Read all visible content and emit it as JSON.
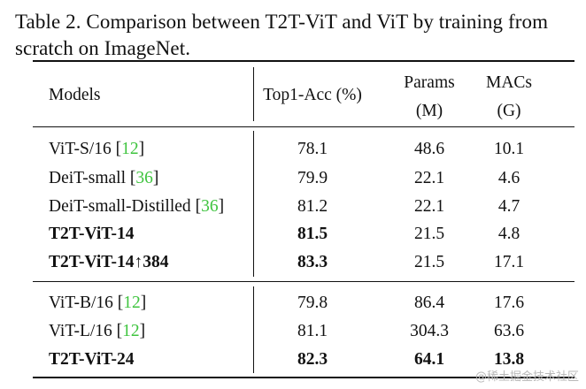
{
  "caption": {
    "line1": "Table 2. Comparison between T2T-ViT and ViT by training from",
    "line2": "scratch on ImageNet."
  },
  "header": {
    "models": "Models",
    "acc": "Top1-Acc (%)",
    "params": "Params",
    "params_unit": "(M)",
    "macs": "MACs",
    "macs_unit": "(G)"
  },
  "rows": [
    {
      "model": "ViT-S/16",
      "cite": "12",
      "acc": "78.1",
      "params": "48.6",
      "macs": "10.1"
    },
    {
      "model": "DeiT-small",
      "cite": "36",
      "acc": "79.9",
      "params": "22.1",
      "macs": "4.6"
    },
    {
      "model": "DeiT-small-Distilled",
      "cite": "36",
      "acc": "81.2",
      "params": "22.1",
      "macs": "4.7"
    },
    {
      "model": "T2T-ViT-14",
      "cite": "",
      "acc": "81.5",
      "params": "21.5",
      "macs": "4.8"
    },
    {
      "model": "T2T-ViT-14↑384",
      "cite": "",
      "acc": "83.3",
      "params": "21.5",
      "macs": "17.1"
    },
    {
      "model": "ViT-B/16",
      "cite": "12",
      "acc": "79.8",
      "params": "86.4",
      "macs": "17.6"
    },
    {
      "model": "ViT-L/16",
      "cite": "12",
      "acc": "81.1",
      "params": "304.3",
      "macs": "63.6"
    },
    {
      "model": "T2T-ViT-24",
      "cite": "",
      "acc": "82.3",
      "params": "64.1",
      "macs": "13.8"
    }
  ],
  "watermark": "@稀土掘金技术社区"
}
